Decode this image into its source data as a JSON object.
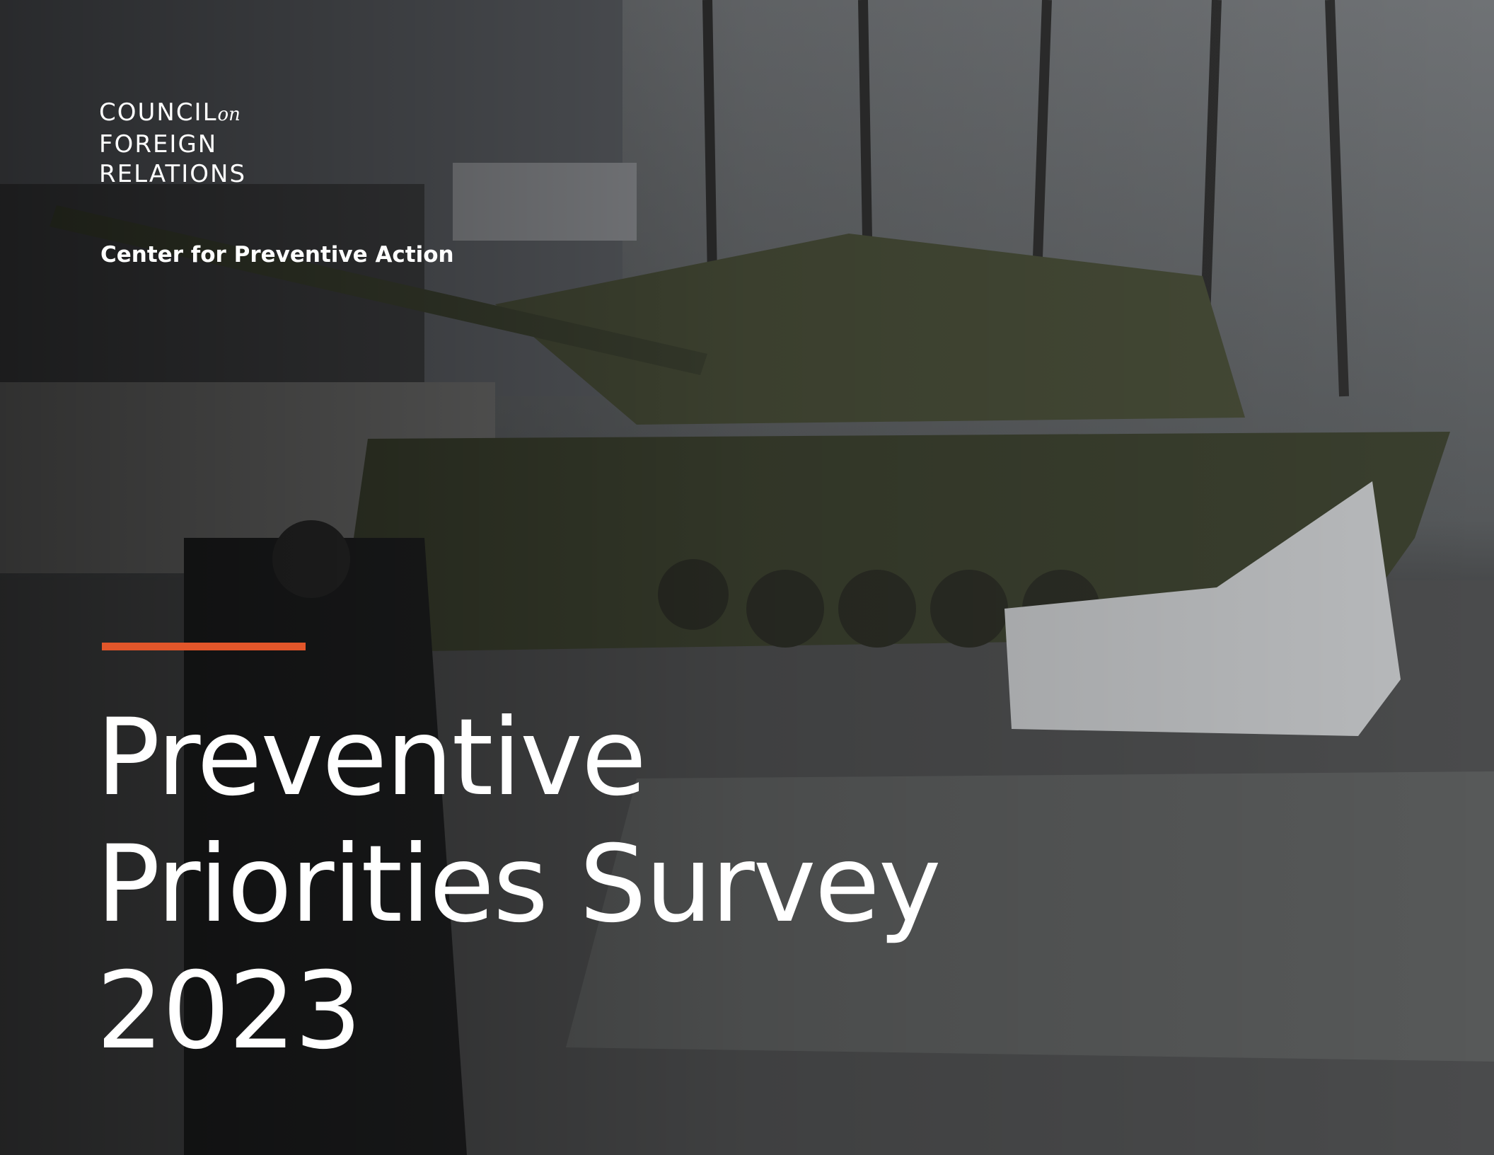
{
  "logo": {
    "line1": "COUNCIL",
    "line1_suffix": "on",
    "line2": "FOREIGN",
    "line3": "RELATIONS"
  },
  "subtitle": "Center for Preventive Action",
  "title": {
    "lines": [
      "Preventive",
      "Priorities Survey",
      "2023"
    ]
  }
}
